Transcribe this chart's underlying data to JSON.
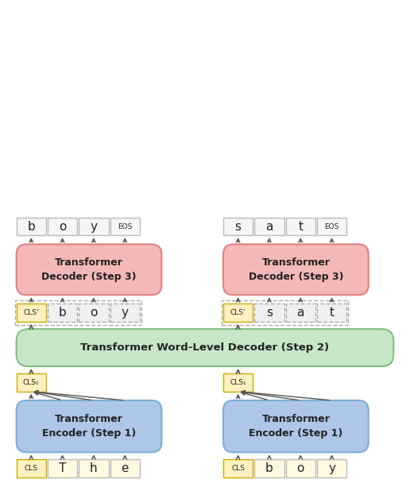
{
  "background_color": "#ffffff",
  "fig_width": 5.16,
  "fig_height": 6.18,
  "colors": {
    "encoder_fill": "#aec6e8",
    "encoder_edge": "#7bafd4",
    "decoder_fill": "#f4b8b8",
    "decoder_edge": "#e08080",
    "word_decoder_fill": "#c8e6c8",
    "word_decoder_edge": "#80c080",
    "token_box_fill": "#fef9e0",
    "token_box_edge": "#bbbbbb",
    "cls_box_fill": "#fef0c0",
    "cls_box_edge": "#ccaa00",
    "output_box_fill": "#f5f5f5",
    "output_box_edge": "#bbbbbb",
    "dashed_box_fill": "#f0f0f0",
    "dashed_box_edge": "#aaaaaa",
    "arrow_color": "#555555",
    "text_color": "#222222"
  },
  "left_tokens": [
    "CLS",
    "T",
    "h",
    "e"
  ],
  "left_cls0": "CLS₀",
  "left_decoder_tokens": [
    "CLS'",
    "b",
    "o",
    "y"
  ],
  "left_output_tokens": [
    "b",
    "o",
    "y",
    "EOS"
  ],
  "right_tokens": [
    "CLS",
    "b",
    "o",
    "y"
  ],
  "right_cls1": "CLS₁",
  "right_decoder_tokens": [
    "CLS'",
    "s",
    "a",
    "t"
  ],
  "right_output_tokens": [
    "s",
    "a",
    "t",
    "EOS"
  ],
  "encoder_label": "Transformer\nEncoder (Step 1)",
  "word_decoder_label": "Transformer Word-Level Decoder (Step 2)",
  "char_decoder_label": "Transformer\nDecoder (Step 3)"
}
